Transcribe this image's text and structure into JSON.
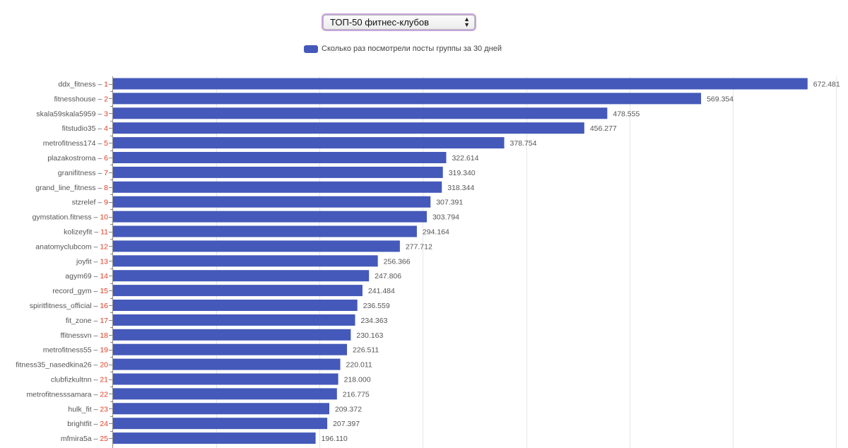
{
  "selector": {
    "selected": "ТОП-50 фитнес-клубов"
  },
  "legend": {
    "label": "Сколько раз посмотрели посты группы за 30 дней",
    "color": "#4459b9"
  },
  "colors": {
    "bar": "#4459b9",
    "rank": "#e03c24",
    "label": "#555555",
    "grid": "#e6e6e6",
    "axis": "#888888"
  },
  "chart_data": {
    "type": "bar",
    "orientation": "horizontal",
    "x_range": [
      0,
      700
    ],
    "grid": true,
    "series": [
      {
        "name": "Сколько раз посмотрели посты группы за 30 дней",
        "values": [
          672.481,
          569.354,
          478.555,
          456.277,
          378.754,
          322.614,
          319.34,
          318.344,
          307.391,
          303.794,
          294.164,
          277.712,
          256.366,
          247.806,
          241.484,
          236.559,
          234.363,
          230.163,
          226.511,
          220.011,
          218.0,
          216.775,
          209.372,
          207.397,
          196.11
        ]
      }
    ],
    "value_labels": [
      "672.481",
      "569.354",
      "478.555",
      "456.277",
      "378.754",
      "322.614",
      "319.340",
      "318.344",
      "307.391",
      "303.794",
      "294.164",
      "277.712",
      "256.366",
      "247.806",
      "241.484",
      "236.559",
      "234.363",
      "230.163",
      "226.511",
      "220.011",
      "218.000",
      "216.775",
      "209.372",
      "207.397",
      "196.110"
    ],
    "categories": [
      {
        "name": "ddx_fitness",
        "rank": "1"
      },
      {
        "name": "fitnesshouse",
        "rank": "2"
      },
      {
        "name": "skala59skala5959",
        "rank": "3"
      },
      {
        "name": "fitstudio35",
        "rank": "4"
      },
      {
        "name": "metrofitness174",
        "rank": "5"
      },
      {
        "name": "plazakostroma",
        "rank": "6"
      },
      {
        "name": "granifitness",
        "rank": "7"
      },
      {
        "name": "grand_line_fitness",
        "rank": "8"
      },
      {
        "name": "stzrelef",
        "rank": "9"
      },
      {
        "name": "gymstation.fitness",
        "rank": "10"
      },
      {
        "name": "kolizeyfit",
        "rank": "11"
      },
      {
        "name": "anatomyclubcom",
        "rank": "12"
      },
      {
        "name": "joyfit",
        "rank": "13"
      },
      {
        "name": "agym69",
        "rank": "14"
      },
      {
        "name": "record_gym",
        "rank": "15"
      },
      {
        "name": "spiritfitness_official",
        "rank": "16"
      },
      {
        "name": "fit_zone",
        "rank": "17"
      },
      {
        "name": "ffitnessvn",
        "rank": "18"
      },
      {
        "name": "metrofitness55",
        "rank": "19"
      },
      {
        "name": "fitness35_nasedkina26",
        "rank": "20"
      },
      {
        "name": "clubfizkultnn",
        "rank": "21"
      },
      {
        "name": "metrofitnesssamara",
        "rank": "22"
      },
      {
        "name": "hulk_fit",
        "rank": "23"
      },
      {
        "name": "brightfit",
        "rank": "24"
      },
      {
        "name": "mfmira5a",
        "rank": "25"
      }
    ]
  }
}
